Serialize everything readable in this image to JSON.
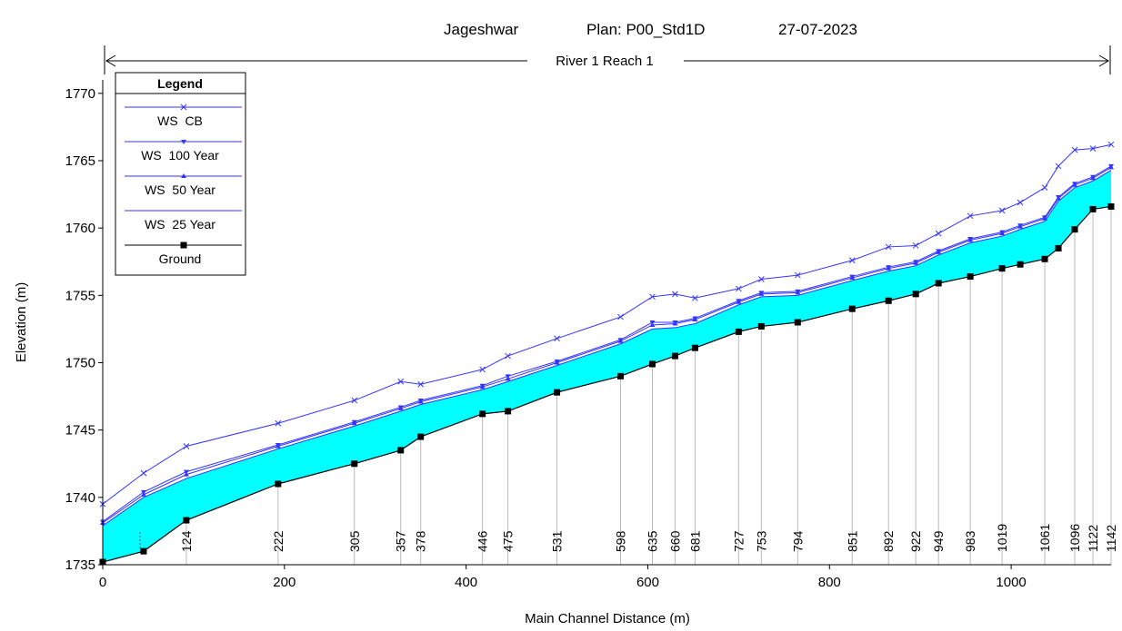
{
  "header": {
    "location": "Jageshwar",
    "plan": "Plan: P00_Std1D",
    "date": "27-07-2023",
    "reach": "River 1 Reach 1"
  },
  "legend": {
    "title": "Legend",
    "placement": "top-left",
    "entries": [
      {
        "label": "WS  CB",
        "marker": "x",
        "color": "#3333ff"
      },
      {
        "label": "WS  100 Year",
        "marker": "triangle-down",
        "color": "#3333ff"
      },
      {
        "label": "WS  50 Year",
        "marker": "triangle-up",
        "color": "#3333ff"
      },
      {
        "label": "WS  25 Year",
        "marker": "none",
        "color": "#3333ff"
      },
      {
        "label": "Ground",
        "marker": "square",
        "color": "#000000"
      }
    ]
  },
  "colors": {
    "water_fill": "#00ffff",
    "ws_line": "#3333ff",
    "ground_line": "#000000",
    "station_line": "#bbbbbb"
  },
  "chart_data": {
    "type": "line",
    "xlabel": "Main Channel Distance (m)",
    "ylabel": "Elevation (m)",
    "xlim": [
      0,
      1110
    ],
    "ylim": [
      1735,
      1771
    ],
    "xticks": [
      0,
      200,
      400,
      600,
      800,
      1000
    ],
    "yticks": [
      1735,
      1740,
      1745,
      1750,
      1755,
      1760,
      1765,
      1770
    ],
    "x": [
      0,
      45,
      92,
      193,
      277,
      328,
      350,
      418,
      446,
      500,
      570,
      605,
      630,
      652,
      700,
      725,
      765,
      825,
      865,
      895,
      920,
      955,
      990,
      1010,
      1037,
      1052,
      1070,
      1090,
      1110
    ],
    "station_labels": [
      {
        "label": "124",
        "x": 92
      },
      {
        "label": "222",
        "x": 193
      },
      {
        "label": "305",
        "x": 277
      },
      {
        "label": "357",
        "x": 328
      },
      {
        "label": "378",
        "x": 350
      },
      {
        "label": "446",
        "x": 418
      },
      {
        "label": "475",
        "x": 446
      },
      {
        "label": "531",
        "x": 500
      },
      {
        "label": "598",
        "x": 570
      },
      {
        "label": "635",
        "x": 605
      },
      {
        "label": "660",
        "x": 630
      },
      {
        "label": "681",
        "x": 652
      },
      {
        "label": "727",
        "x": 700
      },
      {
        "label": "753",
        "x": 725
      },
      {
        "label": "794",
        "x": 765
      },
      {
        "label": "851",
        "x": 825
      },
      {
        "label": "892",
        "x": 865
      },
      {
        "label": "922",
        "x": 895
      },
      {
        "label": "949",
        "x": 920
      },
      {
        "label": "983",
        "x": 955
      },
      {
        "label": "1019",
        "x": 990
      },
      {
        "label": "1061",
        "x": 1037
      },
      {
        "label": "1096",
        "x": 1070
      },
      {
        "label": "1122",
        "x": 1090
      },
      {
        "label": "1142",
        "x": 1110
      }
    ],
    "series": [
      {
        "name": "WS  CB",
        "values": [
          1739.5,
          1741.8,
          1743.8,
          1745.5,
          1747.2,
          1748.6,
          1748.4,
          1749.5,
          1750.5,
          1751.8,
          1753.4,
          1754.9,
          1755.1,
          1754.8,
          1755.5,
          1756.2,
          1756.5,
          1757.6,
          1758.6,
          1758.7,
          1759.6,
          1760.9,
          1761.3,
          1761.9,
          1763.0,
          1764.6,
          1765.8,
          1765.9,
          1766.2
        ]
      },
      {
        "name": "WS  100 Year",
        "values": [
          1738.2,
          1740.4,
          1741.9,
          1743.9,
          1745.6,
          1746.7,
          1747.2,
          1748.3,
          1749.0,
          1750.1,
          1751.7,
          1753.0,
          1753.0,
          1753.3,
          1754.6,
          1755.2,
          1755.3,
          1756.4,
          1757.1,
          1757.5,
          1758.3,
          1759.2,
          1759.7,
          1760.2,
          1760.8,
          1762.3,
          1763.3,
          1763.8,
          1764.6
        ]
      },
      {
        "name": "WS  50 Year",
        "values": [
          1738.1,
          1740.2,
          1741.7,
          1743.8,
          1745.5,
          1746.6,
          1747.1,
          1748.2,
          1748.8,
          1750.0,
          1751.6,
          1752.8,
          1752.9,
          1753.2,
          1754.5,
          1755.1,
          1755.2,
          1756.3,
          1757.0,
          1757.4,
          1758.2,
          1759.1,
          1759.6,
          1760.1,
          1760.7,
          1762.2,
          1763.2,
          1763.7,
          1764.5
        ]
      },
      {
        "name": "WS  25 Year",
        "values": [
          1737.9,
          1740.0,
          1741.4,
          1743.6,
          1745.3,
          1746.4,
          1746.9,
          1748.0,
          1748.6,
          1749.8,
          1751.4,
          1752.5,
          1752.6,
          1752.9,
          1754.3,
          1754.9,
          1755.0,
          1756.1,
          1756.8,
          1757.2,
          1758.0,
          1758.9,
          1759.4,
          1759.9,
          1760.5,
          1762.0,
          1763.0,
          1763.5,
          1764.3
        ]
      },
      {
        "name": "Ground",
        "values": [
          1735.2,
          1736.0,
          1738.3,
          1741.0,
          1742.5,
          1743.5,
          1744.5,
          1746.2,
          1746.4,
          1747.8,
          1749.0,
          1749.9,
          1750.5,
          1751.1,
          1752.3,
          1752.7,
          1753.0,
          1754.0,
          1754.6,
          1755.1,
          1755.9,
          1756.4,
          1757.0,
          1757.3,
          1757.7,
          1758.5,
          1759.9,
          1761.4,
          1761.6
        ]
      }
    ]
  }
}
